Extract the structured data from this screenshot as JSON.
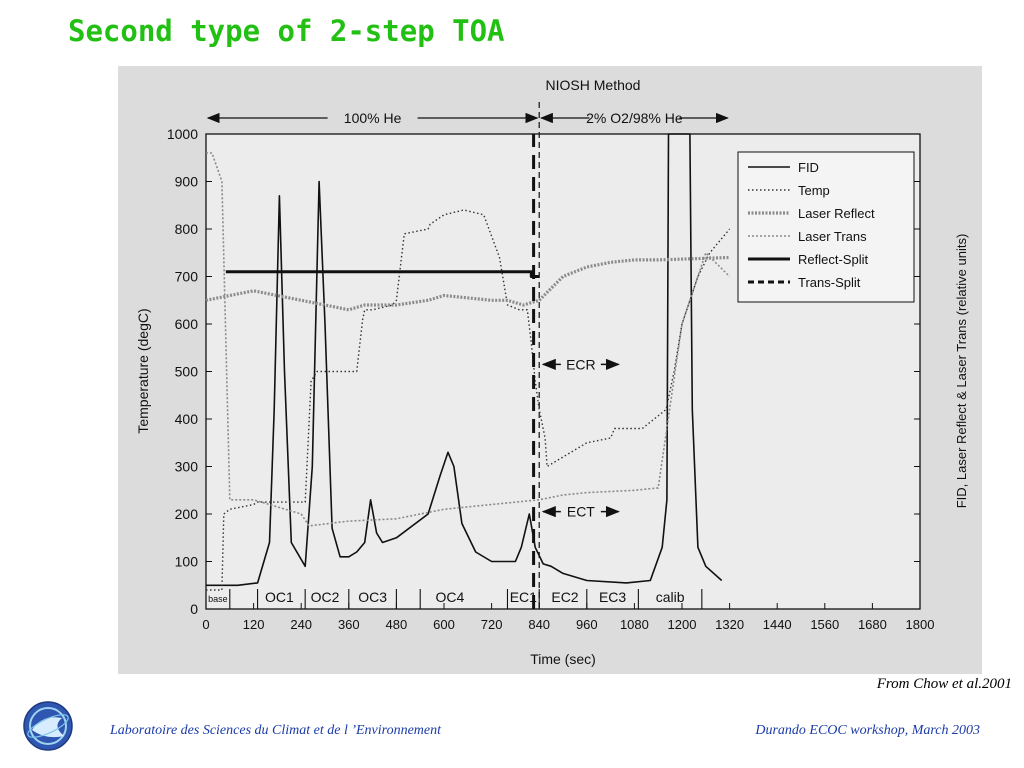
{
  "slide": {
    "title": "Second type of 2-step TOA",
    "credit": "From Chow et al.2001",
    "footer_left": "Laboratoire des Sciences du Climat et de l ’Environnement",
    "footer_right": "Durando ECOC workshop, March 2003"
  },
  "chart_data": {
    "type": "line",
    "title": "NIOSH Method",
    "xlabel": "Time (sec)",
    "ylabel": "Temperature (degC)",
    "y2label": "FID, Laser Reflect & Laser Trans (relative units)",
    "xlim": [
      0,
      1800
    ],
    "ylim": [
      0,
      1000
    ],
    "xticks": [
      0,
      120,
      240,
      360,
      480,
      600,
      720,
      840,
      960,
      1080,
      1200,
      1320,
      1440,
      1560,
      1680,
      1800
    ],
    "yticks": [
      0,
      100,
      200,
      300,
      400,
      500,
      600,
      700,
      800,
      900,
      1000
    ],
    "grid": false,
    "legend_position": "top-right",
    "phases": [
      {
        "label": "100% He",
        "from": 0,
        "to": 840
      },
      {
        "label": "2% O2/98% He",
        "from": 840,
        "to": 1320
      }
    ],
    "fraction_labels": [
      {
        "label": "base",
        "x": 30
      },
      {
        "label": "OC1",
        "x": 185
      },
      {
        "label": "OC2",
        "x": 300
      },
      {
        "label": "OC3",
        "x": 420
      },
      {
        "label": "OC4",
        "x": 615
      },
      {
        "label": "EC1",
        "x": 800
      },
      {
        "label": "EC2",
        "x": 905
      },
      {
        "label": "EC3",
        "x": 1025
      },
      {
        "label": "calib",
        "x": 1170
      }
    ],
    "fraction_boundaries": [
      60,
      130,
      250,
      360,
      480,
      540,
      760,
      840,
      960,
      1090,
      1250
    ],
    "annotations": [
      {
        "label": "ECR",
        "x_from": 840,
        "x_to": 1040,
        "y": 515
      },
      {
        "label": "ECT",
        "x_from": 840,
        "x_to": 1040,
        "y": 205
      }
    ],
    "series": [
      {
        "name": "FID",
        "style": "solid-thin",
        "x": [
          0,
          40,
          80,
          130,
          160,
          172,
          185,
          198,
          215,
          250,
          268,
          285,
          300,
          318,
          338,
          360,
          380,
          400,
          415,
          430,
          445,
          480,
          560,
          590,
          610,
          625,
          645,
          680,
          720,
          780,
          795,
          815,
          830,
          850,
          870,
          900,
          960,
          1060,
          1120,
          1150,
          1162,
          1166,
          1220,
          1226,
          1240,
          1260,
          1300
        ],
        "y": [
          50,
          50,
          50,
          55,
          140,
          420,
          870,
          500,
          140,
          90,
          300,
          900,
          600,
          170,
          110,
          110,
          120,
          140,
          230,
          160,
          140,
          150,
          200,
          280,
          330,
          300,
          180,
          120,
          100,
          100,
          130,
          200,
          130,
          95,
          90,
          75,
          60,
          55,
          60,
          130,
          230,
          1000,
          1000,
          420,
          130,
          90,
          60
        ]
      },
      {
        "name": "Temp",
        "style": "dotted",
        "x": [
          0,
          30,
          40,
          45,
          60,
          120,
          130,
          250,
          265,
          280,
          380,
          395,
          400,
          420,
          470,
          480,
          500,
          560,
          565,
          600,
          650,
          700,
          740,
          760,
          790,
          810,
          820,
          830,
          840,
          855,
          860,
          960,
          1020,
          1030,
          1100,
          1160,
          1180,
          1200,
          1240,
          1270,
          1300,
          1320
        ],
        "y": [
          40,
          40,
          40,
          200,
          210,
          220,
          225,
          225,
          480,
          500,
          500,
          610,
          630,
          630,
          640,
          650,
          790,
          800,
          810,
          830,
          840,
          830,
          740,
          640,
          630,
          630,
          560,
          480,
          420,
          360,
          300,
          350,
          360,
          380,
          380,
          420,
          500,
          600,
          700,
          750,
          780,
          800
        ]
      },
      {
        "name": "Laser Reflect",
        "style": "grey-heavy",
        "x": [
          0,
          60,
          120,
          240,
          300,
          360,
          400,
          480,
          560,
          600,
          720,
          760,
          800,
          840,
          900,
          960,
          1020,
          1080,
          1140,
          1320
        ],
        "y": [
          650,
          660,
          670,
          650,
          640,
          630,
          640,
          640,
          650,
          660,
          650,
          650,
          640,
          650,
          700,
          720,
          730,
          735,
          735,
          740
        ]
      },
      {
        "name": "Laser Trans",
        "style": "grey-light",
        "x": [
          0,
          15,
          40,
          60,
          120,
          240,
          260,
          360,
          480,
          600,
          720,
          840,
          900,
          960,
          1080,
          1140,
          1200,
          1260,
          1320
        ],
        "y": [
          960,
          960,
          900,
          230,
          230,
          200,
          175,
          185,
          190,
          210,
          220,
          230,
          240,
          245,
          250,
          255,
          600,
          750,
          700
        ]
      },
      {
        "name": "Reflect-Split",
        "style": "solid-heavy",
        "x": [
          50,
          820,
          820,
          840
        ],
        "y": [
          710,
          710,
          700,
          700
        ]
      },
      {
        "name": "Trans-Split",
        "style": "dashed",
        "x": [
          826,
          826
        ],
        "y": [
          0,
          1000
        ]
      }
    ]
  }
}
